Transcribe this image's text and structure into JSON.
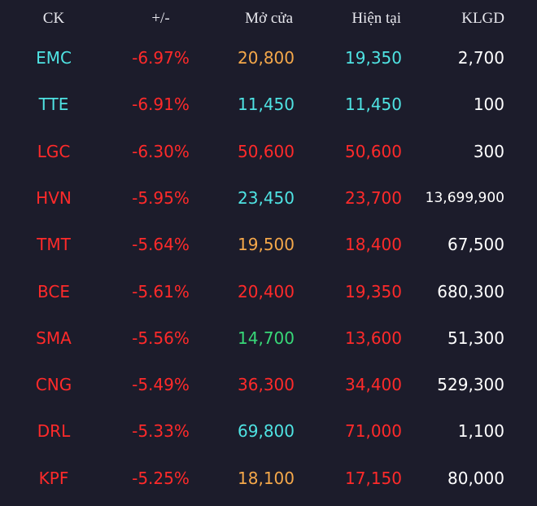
{
  "colors": {
    "background": "#1c1c2b",
    "header_text": "#e8e8ee",
    "floor": "#4fe3e3",
    "down": "#ff2a2a",
    "reference": "#f5a84a",
    "up": "#38d878",
    "volume": "#ffffff"
  },
  "header": {
    "ck": "CK",
    "change": "+/-",
    "open": "Mở cửa",
    "current": "Hiện tại",
    "volume": "KLGD"
  },
  "rows": [
    {
      "ck": "EMC",
      "ck_color": "floor",
      "change": "-6.97%",
      "change_color": "down",
      "open": "20,800",
      "open_color": "reference",
      "current": "19,350",
      "current_color": "floor",
      "volume": "2,700"
    },
    {
      "ck": "TTE",
      "ck_color": "floor",
      "change": "-6.91%",
      "change_color": "down",
      "open": "11,450",
      "open_color": "floor",
      "current": "11,450",
      "current_color": "floor",
      "volume": "100"
    },
    {
      "ck": "LGC",
      "ck_color": "down",
      "change": "-6.30%",
      "change_color": "down",
      "open": "50,600",
      "open_color": "down",
      "current": "50,600",
      "current_color": "down",
      "volume": "300"
    },
    {
      "ck": "HVN",
      "ck_color": "down",
      "change": "-5.95%",
      "change_color": "down",
      "open": "23,450",
      "open_color": "floor",
      "current": "23,700",
      "current_color": "down",
      "volume": "13,699,900"
    },
    {
      "ck": "TMT",
      "ck_color": "down",
      "change": "-5.64%",
      "change_color": "down",
      "open": "19,500",
      "open_color": "reference",
      "current": "18,400",
      "current_color": "down",
      "volume": "67,500"
    },
    {
      "ck": "BCE",
      "ck_color": "down",
      "change": "-5.61%",
      "change_color": "down",
      "open": "20,400",
      "open_color": "down",
      "current": "19,350",
      "current_color": "down",
      "volume": "680,300"
    },
    {
      "ck": "SMA",
      "ck_color": "down",
      "change": "-5.56%",
      "change_color": "down",
      "open": "14,700",
      "open_color": "up",
      "current": "13,600",
      "current_color": "down",
      "volume": "51,300"
    },
    {
      "ck": "CNG",
      "ck_color": "down",
      "change": "-5.49%",
      "change_color": "down",
      "open": "36,300",
      "open_color": "down",
      "current": "34,400",
      "current_color": "down",
      "volume": "529,300"
    },
    {
      "ck": "DRL",
      "ck_color": "down",
      "change": "-5.33%",
      "change_color": "down",
      "open": "69,800",
      "open_color": "floor",
      "current": "71,000",
      "current_color": "down",
      "volume": "1,100"
    },
    {
      "ck": "KPF",
      "ck_color": "down",
      "change": "-5.25%",
      "change_color": "down",
      "open": "18,100",
      "open_color": "reference",
      "current": "17,150",
      "current_color": "down",
      "volume": "80,000"
    }
  ]
}
